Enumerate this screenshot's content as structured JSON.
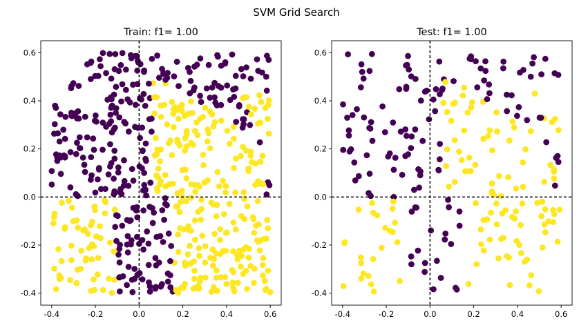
{
  "suptitle": "SVM Grid Search",
  "colors": {
    "class0": "#440154",
    "class1": "#fde725",
    "axes": "#000000",
    "guide": "#000000"
  },
  "chart_data": [
    {
      "type": "scatter",
      "title": "Train: f1= 1.00",
      "xlabel": "",
      "ylabel": "",
      "xlim": [
        -0.45,
        0.65
      ],
      "ylim": [
        -0.45,
        0.65
      ],
      "xticks": [
        -0.4,
        -0.2,
        0.0,
        0.2,
        0.4,
        0.6
      ],
      "yticks": [
        -0.4,
        -0.2,
        0.0,
        0.2,
        0.4,
        0.6
      ],
      "guides": {
        "x": 0.0,
        "y": 0.0,
        "style": "dashed"
      },
      "grid": false,
      "n_points": 620,
      "seed": 12345
    },
    {
      "type": "scatter",
      "title": "Test: f1= 1.00",
      "xlabel": "",
      "ylabel": "",
      "xlim": [
        -0.45,
        0.65
      ],
      "ylim": [
        -0.45,
        0.65
      ],
      "xticks": [
        -0.4,
        -0.2,
        0.0,
        0.2,
        0.4,
        0.6
      ],
      "yticks": [
        -0.4,
        -0.2,
        0.0,
        0.2,
        0.4,
        0.6
      ],
      "guides": {
        "x": 0.0,
        "y": 0.0,
        "style": "dashed"
      },
      "grid": false,
      "n_points": 260,
      "seed": 98765
    }
  ]
}
